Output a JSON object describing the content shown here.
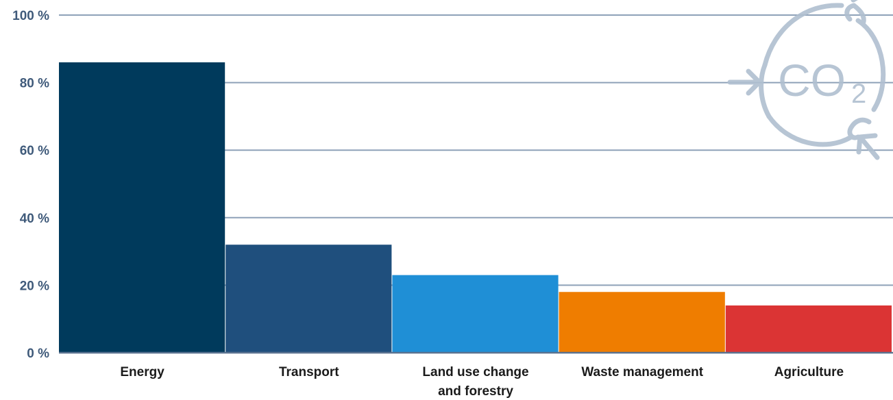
{
  "chart_data": {
    "type": "bar",
    "categories": [
      "Energy",
      "Transport",
      "Land use change\nand forestry",
      "Waste management",
      "Agriculture"
    ],
    "values": [
      86,
      32,
      23,
      18,
      14
    ],
    "colors": [
      "#003a5c",
      "#1f4f7d",
      "#1f8fd6",
      "#ef7d00",
      "#db3434"
    ],
    "ylim": [
      0,
      100
    ],
    "yticks": [
      0,
      20,
      40,
      60,
      80,
      100
    ],
    "ytick_labels": [
      "0 %",
      "20 %",
      "40 %",
      "60 %",
      "80 %",
      "100 %"
    ],
    "grid": true,
    "title": "",
    "xlabel": "",
    "ylabel": ""
  },
  "logo": {
    "icon": "co2-cycle-icon",
    "text": "CO",
    "subscript": "2",
    "color": "#b0bfd0"
  }
}
